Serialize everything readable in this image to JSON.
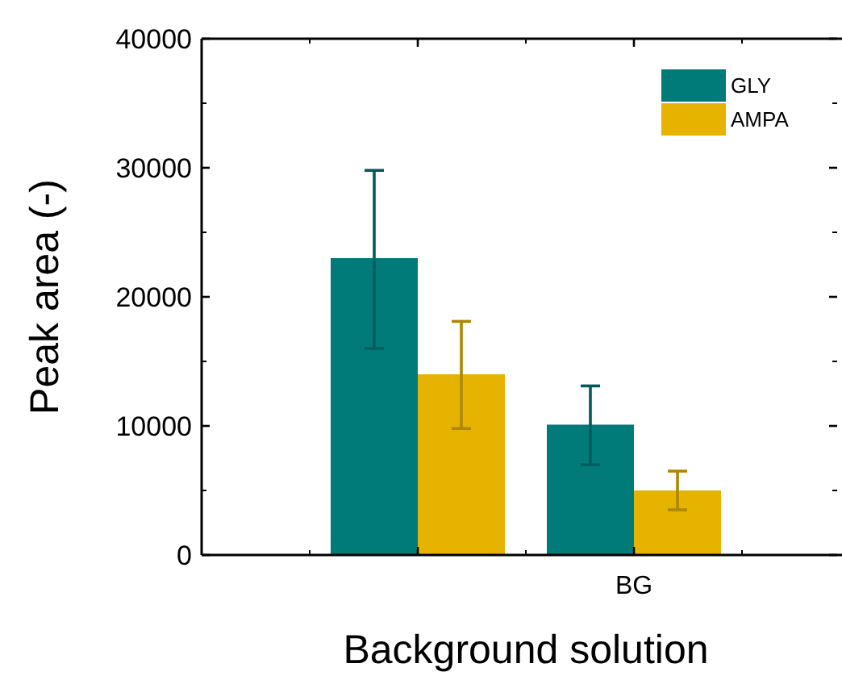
{
  "chart_data": {
    "type": "bar",
    "xlabel": "Background solution",
    "ylabel": "Peak area (-)",
    "categories": [
      null,
      "BG"
    ],
    "series": [
      {
        "name": "GLY",
        "color": "#007b7a",
        "values": [
          23000,
          10100
        ],
        "errors": [
          [
            16000,
            29800
          ],
          [
            7000,
            13100
          ]
        ]
      },
      {
        "name": "AMPA",
        "color": "#e6b400",
        "values": [
          14000,
          5000
        ],
        "errors": [
          [
            9800,
            18100
          ],
          [
            3500,
            6500
          ]
        ]
      }
    ],
    "ylim": [
      0,
      40000
    ],
    "yticks": [
      0,
      10000,
      20000,
      30000,
      40000
    ],
    "legend": "top right"
  }
}
